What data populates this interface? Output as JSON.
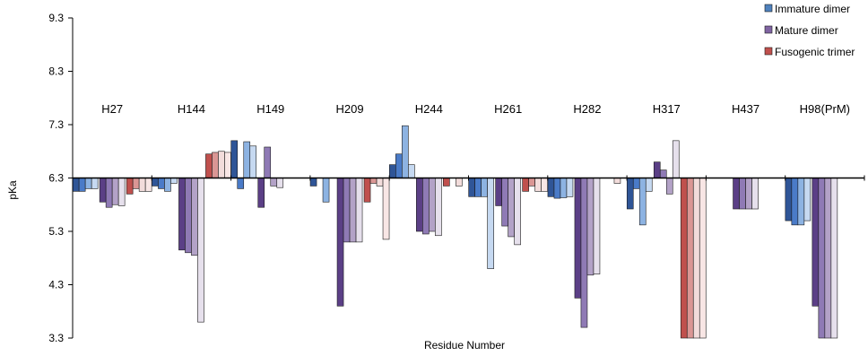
{
  "chart_data": {
    "type": "bar",
    "xlabel": "Residue Number",
    "ylabel": "pKa",
    "ylim": [
      3.3,
      9.3
    ],
    "yticks": [
      "3.3",
      "4.3",
      "5.3",
      "6.3",
      "7.3",
      "8.3",
      "9.3"
    ],
    "baseline": 6.3,
    "grid": false,
    "legend_position": "top-right",
    "categories": [
      "H27",
      "H144",
      "H149",
      "H209",
      "H244",
      "H261",
      "H282",
      "H317",
      "H437",
      "H98(PrM)"
    ],
    "series_groups": [
      {
        "name": "Immature dimer",
        "color": "#4F81BD",
        "shades": [
          "#2F5597",
          "#4A7BC8",
          "#8DB3E2",
          "#C6D9F1"
        ]
      },
      {
        "name": "Mature dimer",
        "color": "#8064A2",
        "shades": [
          "#5B3F86",
          "#8F7AB5",
          "#B3A2C7",
          "#E6E0EC"
        ]
      },
      {
        "name": "Fusogenic trimer",
        "color": "#C0504D",
        "shades": [
          "#C0504D",
          "#DA9694",
          "#F2DCDB",
          "#F8E6E5"
        ]
      }
    ],
    "values": [
      [
        [
          6.05,
          6.05,
          6.1,
          6.1
        ],
        [
          5.85,
          5.75,
          5.8,
          5.78
        ],
        [
          6.0,
          6.1,
          6.05,
          6.05
        ]
      ],
      [
        [
          6.15,
          6.1,
          6.05,
          6.2
        ],
        [
          4.95,
          4.9,
          4.85,
          3.6
        ],
        [
          6.75,
          6.78,
          6.8,
          6.78
        ]
      ],
      [
        [
          7.0,
          6.1,
          6.98,
          6.9
        ],
        [
          5.75,
          6.88,
          6.15,
          6.12
        ],
        [
          null,
          null,
          null,
          null
        ]
      ],
      [
        [
          6.15,
          null,
          5.85,
          null
        ],
        [
          3.9,
          5.1,
          5.1,
          5.1
        ],
        [
          5.85,
          6.2,
          6.15,
          5.15
        ]
      ],
      [
        [
          6.55,
          6.75,
          7.28,
          6.55
        ],
        [
          5.3,
          5.25,
          5.3,
          5.22
        ],
        [
          6.15,
          null,
          6.15,
          null
        ]
      ],
      [
        [
          5.95,
          5.95,
          5.95,
          4.6
        ],
        [
          5.78,
          5.4,
          5.2,
          5.05
        ],
        [
          6.05,
          6.15,
          6.05,
          6.05
        ]
      ],
      [
        [
          5.95,
          5.92,
          5.93,
          5.95
        ],
        [
          4.05,
          3.5,
          4.48,
          4.5
        ],
        [
          null,
          null,
          6.2,
          null
        ]
      ],
      [
        [
          5.72,
          6.1,
          5.42,
          6.05
        ],
        [
          6.6,
          6.45,
          6.0,
          7.0
        ],
        [
          3.3,
          3.3,
          3.3,
          3.3
        ]
      ],
      [
        [
          null,
          null,
          null,
          null
        ],
        [
          5.72,
          5.72,
          5.72,
          5.72
        ],
        [
          null,
          null,
          null,
          null
        ]
      ],
      [
        [
          5.5,
          5.42,
          5.42,
          5.5
        ],
        [
          3.9,
          3.3,
          3.3,
          3.3
        ],
        [
          null,
          null,
          null,
          null
        ]
      ]
    ]
  }
}
